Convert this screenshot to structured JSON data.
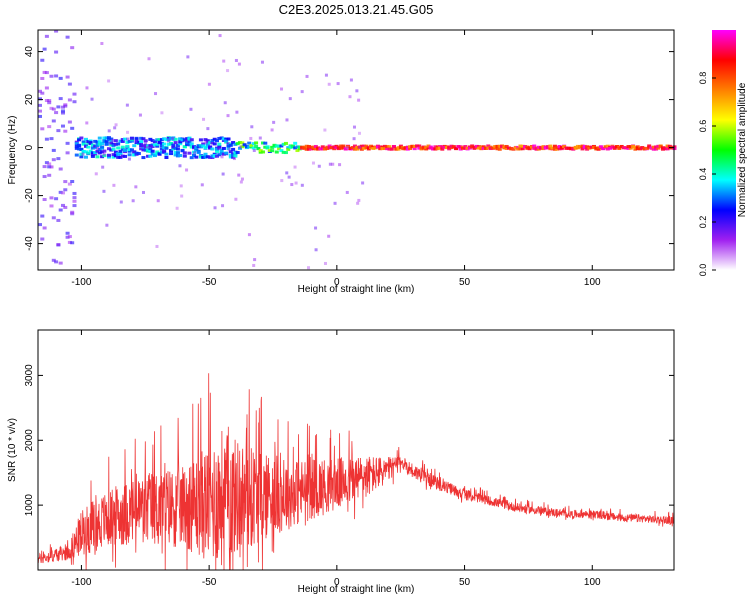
{
  "figure_title": "C2E3.2025.013.21.45.G05",
  "chart_data": [
    {
      "type": "heatmap",
      "xlabel": "Height of straight line (km)",
      "ylabel": "Frequency (Hz)",
      "xlim": [
        -117,
        132
      ],
      "ylim": [
        -51,
        49
      ],
      "xticks": [
        -100,
        -50,
        0,
        50,
        100
      ],
      "yticks": [
        -40,
        -20,
        0,
        20,
        40
      ],
      "grid": false,
      "colorbar": {
        "label": "Normalized spectral amplitude",
        "range": [
          0,
          1
        ],
        "ticks": [
          0.0,
          0.2,
          0.4,
          0.6,
          0.8
        ],
        "colors": [
          "#ffffff",
          "#a020f0",
          "#0000ff",
          "#00ffff",
          "#00ff00",
          "#ffff00",
          "#ff7f00",
          "#ff0000",
          "#ff00ff"
        ]
      },
      "description_values": [
        {
          "height_range": [
            -117,
            -103
          ],
          "frequency_spread_hz": 49,
          "amplitude": 0.2
        },
        {
          "height_range": [
            -103,
            -40
          ],
          "frequency_spread_hz": 6,
          "amplitude": 0.35
        },
        {
          "height_range": [
            -40,
            -15
          ],
          "frequency_spread_hz": 3,
          "amplitude": 0.5
        },
        {
          "height_range": [
            -15,
            132
          ],
          "frequency_spread_hz": 1,
          "amplitude": 0.95
        }
      ]
    },
    {
      "type": "line",
      "xlabel": "Height of straight line (km)",
      "ylabel": "SNR (10 * v/v)",
      "xlim": [
        -117,
        132
      ],
      "ylim": [
        0,
        3700
      ],
      "xticks": [
        -100,
        -50,
        0,
        50,
        100
      ],
      "yticks": [
        1000,
        2000,
        3000
      ],
      "grid": false,
      "color": "#ee3333",
      "envelope": {
        "x": [
          -117,
          -105,
          -100,
          -90,
          -80,
          -70,
          -60,
          -50,
          -45,
          -40,
          -30,
          -20,
          -10,
          0,
          10,
          20,
          25,
          30,
          40,
          50,
          60,
          70,
          80,
          90,
          100,
          110,
          120,
          132
        ],
        "base": [
          150,
          250,
          500,
          700,
          800,
          850,
          850,
          850,
          900,
          950,
          1000,
          1050,
          1150,
          1250,
          1350,
          1500,
          1650,
          1500,
          1300,
          1150,
          1050,
          950,
          900,
          850,
          850,
          800,
          780,
          750
        ],
        "spread": [
          200,
          300,
          900,
          1100,
          1300,
          1500,
          1600,
          2300,
          2700,
          2300,
          1800,
          1400,
          1200,
          1000,
          900,
          500,
          250,
          300,
          250,
          200,
          180,
          170,
          160,
          150,
          150,
          150,
          150,
          150
        ]
      }
    }
  ]
}
